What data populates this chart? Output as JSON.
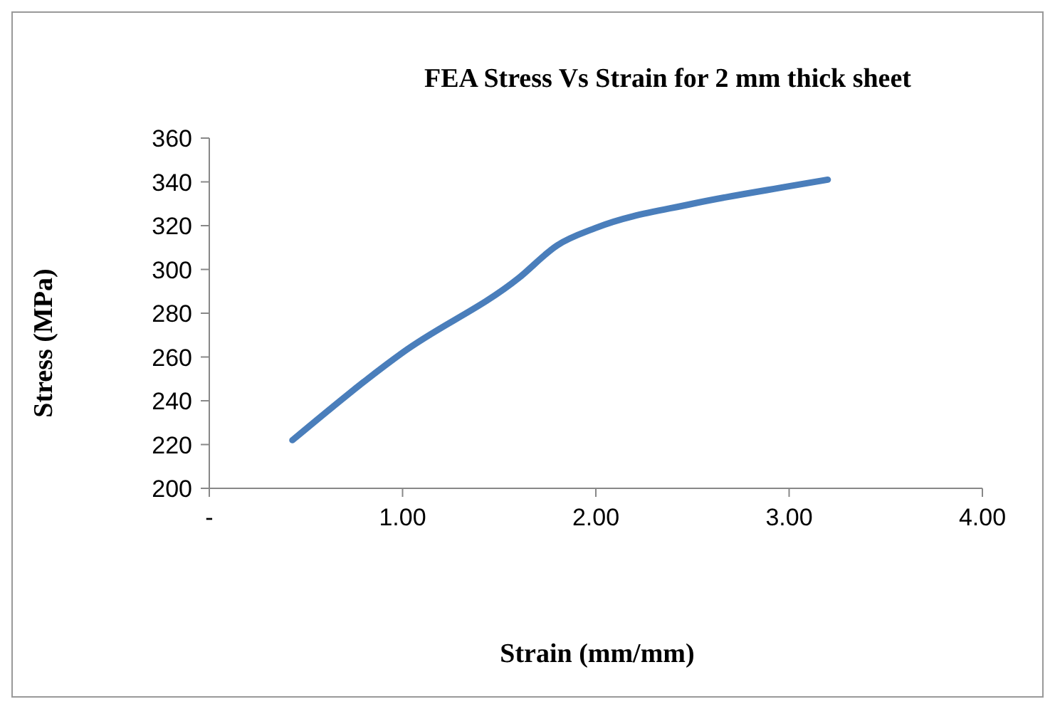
{
  "chart_data": {
    "type": "line",
    "title": "FEA Stress Vs Strain for 2 mm thick sheet",
    "xlabel": "Strain (mm/mm)",
    "ylabel": "Stress (MPa)",
    "x": [
      0.43,
      1.0,
      1.6,
      1.8,
      2.0,
      2.5,
      3.0,
      3.2
    ],
    "series": [
      {
        "color": "#4a7ebb",
        "values": [
          222,
          262,
          296,
          311,
          319,
          330,
          338,
          341
        ]
      }
    ],
    "xlim": [
      0,
      4
    ],
    "xticks": [
      {
        "value": 0,
        "label": "-"
      },
      {
        "value": 1,
        "label": "1.00"
      },
      {
        "value": 2,
        "label": "2.00"
      },
      {
        "value": 3,
        "label": "3.00"
      },
      {
        "value": 4,
        "label": "4.00"
      }
    ],
    "ylim": [
      200,
      360
    ],
    "yticks": [
      200,
      220,
      240,
      260,
      280,
      300,
      320,
      340,
      360
    ],
    "grid": false,
    "legend": false,
    "marker": "none",
    "line_style": "solid"
  }
}
